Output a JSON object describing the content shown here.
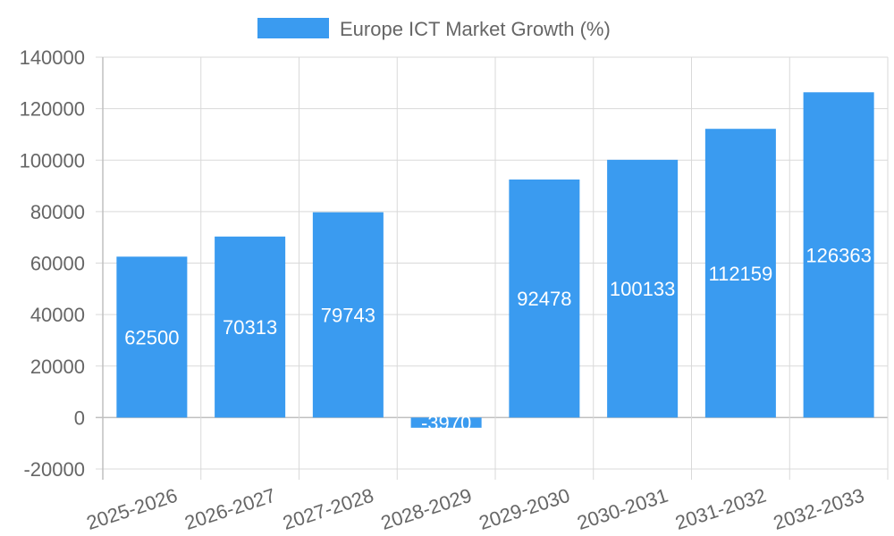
{
  "chart_data": {
    "type": "bar",
    "title": "",
    "legend": {
      "label": "Europe ICT Market Growth (%)",
      "placement": "top-center"
    },
    "categories": [
      "2025-2026",
      "2026-2027",
      "2027-2028",
      "2028-2029",
      "2029-2030",
      "2030-2031",
      "2031-2032",
      "2032-2033"
    ],
    "series": [
      {
        "name": "Europe ICT Market Growth (%)",
        "values": [
          62500,
          70313,
          79743,
          -3970,
          92478,
          100133,
          112159,
          126363
        ]
      }
    ],
    "ylim": [
      -20000,
      140000
    ],
    "yticks": [
      "140000",
      "120000",
      "100000",
      "80000",
      "60000",
      "40000",
      "20000",
      "0",
      "-20000"
    ],
    "grid": true,
    "bar_color": "#3a9bf0",
    "xlabel": "",
    "ylabel": ""
  }
}
